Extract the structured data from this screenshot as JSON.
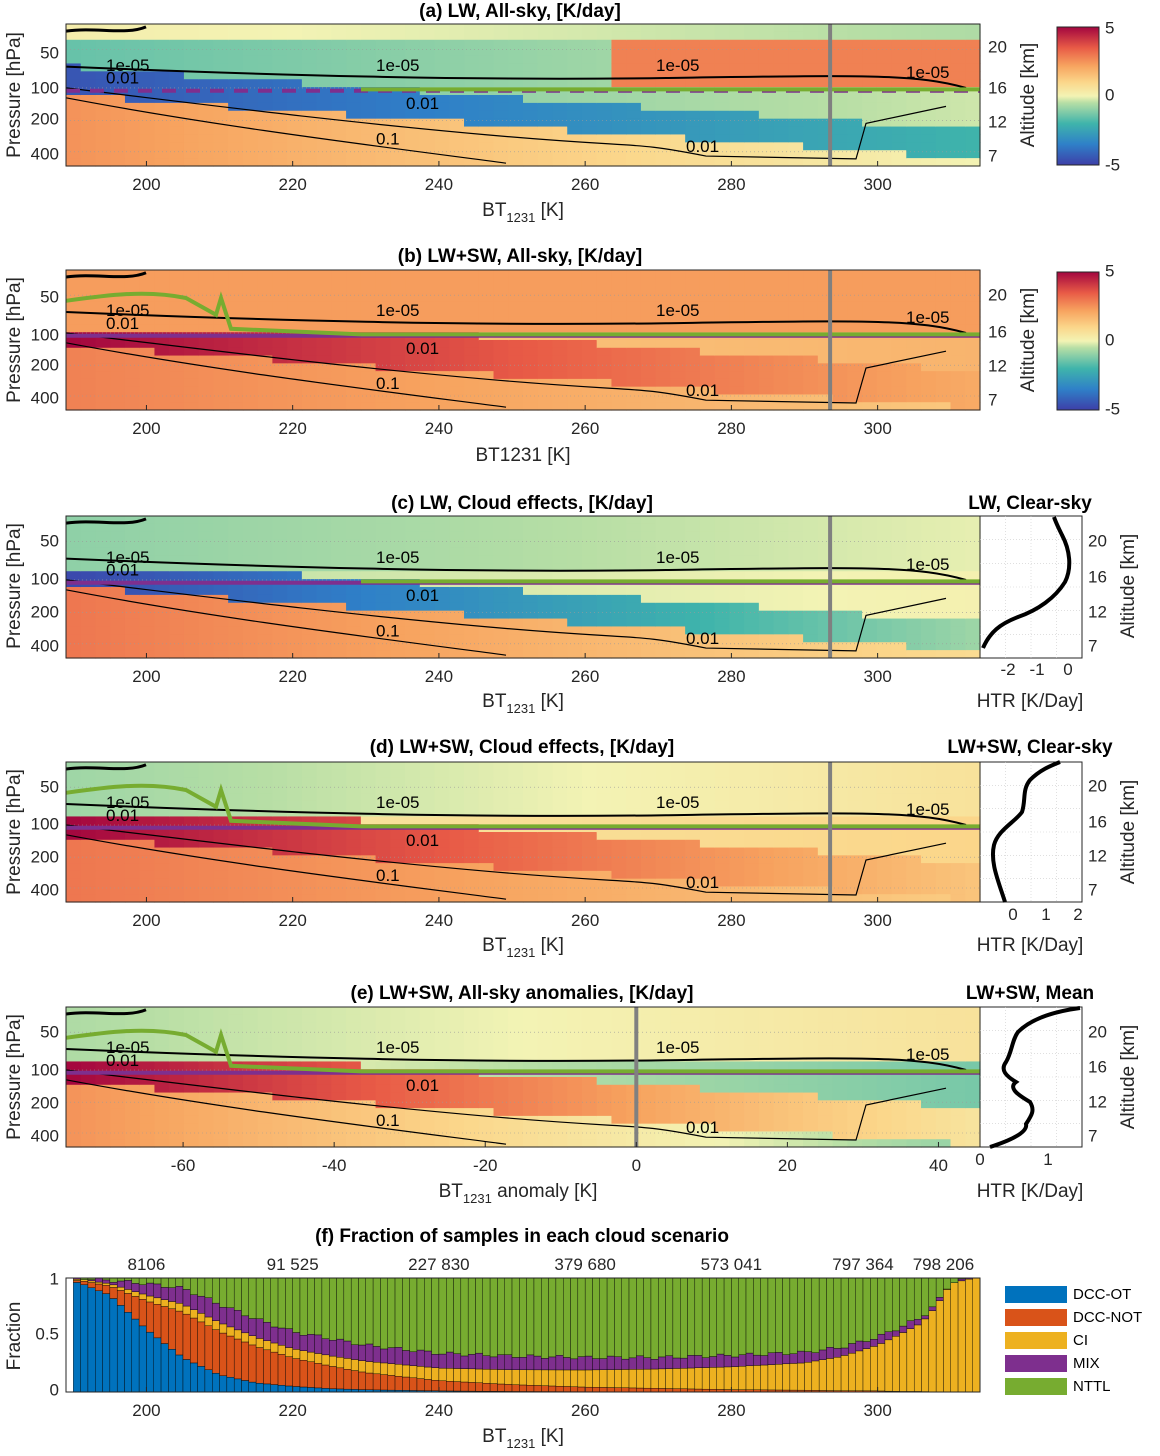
{
  "chart_data": [
    {
      "panel": "a",
      "type": "heatmap",
      "title": "(a) LW, All-sky, [K/day]",
      "xlabel": "BT",
      "xlabel_sub": "1231",
      "xlabel_tail": " [K]",
      "ylabel": "Pressure [hPa]",
      "y2label": "Altitude [km]",
      "xlim": [
        189,
        314
      ],
      "xticks": [
        "200",
        "220",
        "240",
        "260",
        "280",
        "300"
      ],
      "yticks": [
        "50",
        "100",
        "200",
        "400"
      ],
      "y2ticks": [
        "20",
        "16",
        "12",
        "7"
      ],
      "colorbar": {
        "ticks": [
          "5",
          "0",
          "-5"
        ],
        "range": [
          -5,
          5
        ]
      },
      "contour_labels": [
        "1e-05",
        "0.01",
        "0.1",
        "0.01",
        "1e-05",
        "1e-05",
        "0.01",
        "-05"
      ],
      "vertical_marker_x": 293.5
    },
    {
      "panel": "b",
      "type": "heatmap",
      "title": "(b) LW+SW, All-sky, [K/day]",
      "xlabel": "BT1231 [K]",
      "ylabel": "Pressure [hPa]",
      "y2label": "Altitude [km]",
      "xlim": [
        189,
        314
      ],
      "xticks": [
        "200",
        "220",
        "240",
        "260",
        "280",
        "300"
      ],
      "yticks": [
        "50",
        "100",
        "200",
        "400"
      ],
      "y2ticks": [
        "20",
        "16",
        "12",
        "7"
      ],
      "colorbar": {
        "ticks": [
          "5",
          "0",
          "-5"
        ],
        "range": [
          -5,
          5
        ]
      },
      "contour_labels": [
        "1e-05",
        "0.01",
        "0.1",
        "0.01",
        "1e-05",
        "1e-05",
        "0.01",
        "-05"
      ],
      "vertical_marker_x": 293.5
    },
    {
      "panel": "c",
      "type": "heatmap",
      "title": "(c) LW, Cloud effects, [K/day]",
      "xlabel": "BT",
      "xlabel_sub": "1231",
      "xlabel_tail": " [K]",
      "ylabel": "Pressure [hPa]",
      "xlim": [
        189,
        314
      ],
      "xticks": [
        "200",
        "220",
        "240",
        "260",
        "280",
        "300"
      ],
      "yticks": [
        "50",
        "100",
        "200",
        "400"
      ],
      "contour_labels": [
        "1e-05",
        "0.01",
        "0.1",
        "0.01",
        "1e-05",
        "1e-05",
        "0.01",
        "-05"
      ],
      "vertical_marker_x": 293.5,
      "side_profile": {
        "title": "LW, Clear-sky",
        "type": "line",
        "xlabel": "HTR [K/Day]",
        "y2label": "Altitude [km]",
        "xlim": [
          -2.5,
          0.5
        ],
        "xticks": [
          "-2",
          "-1",
          "0"
        ],
        "y2ticks": [
          "20",
          "16",
          "12",
          "7"
        ]
      }
    },
    {
      "panel": "d",
      "type": "heatmap",
      "title": "(d) LW+SW, Cloud effects, [K/day]",
      "xlabel": "BT",
      "xlabel_sub": "1231",
      "xlabel_tail": " [K]",
      "ylabel": "Pressure [hPa]",
      "xlim": [
        189,
        314
      ],
      "xticks": [
        "200",
        "220",
        "240",
        "260",
        "280",
        "300"
      ],
      "yticks": [
        "50",
        "100",
        "200",
        "400"
      ],
      "contour_labels": [
        "1e-05",
        "0.01",
        "0.1",
        "0.01",
        "1e-05",
        "1e-05",
        "0.01",
        "-05"
      ],
      "vertical_marker_x": 293.5,
      "side_profile": {
        "title": "LW+SW, Clear-sky",
        "type": "line",
        "xlabel": "HTR [K/Day]",
        "y2label": "Altitude [km]",
        "xlim": [
          -1,
          2
        ],
        "xticks": [
          "0",
          "1",
          "2"
        ],
        "y2ticks": [
          "20",
          "16",
          "12",
          "7"
        ]
      }
    },
    {
      "panel": "e",
      "type": "heatmap",
      "title": "(e) LW+SW, All-sky anomalies, [K/day]",
      "xlabel": "BT",
      "xlabel_sub": "1231",
      "xlabel_tail": " anomaly [K]",
      "ylabel": "Pressure [hPa]",
      "xlim": [
        -75.5,
        45.5
      ],
      "xticks": [
        "-60",
        "-40",
        "-20",
        "0",
        "20",
        "40"
      ],
      "yticks": [
        "50",
        "100",
        "200",
        "400"
      ],
      "contour_labels": [
        "1e-05",
        "0.01",
        "0.1",
        "0.01",
        "1e-05",
        "1e-05",
        "0.01",
        "-05"
      ],
      "vertical_marker_x": 0,
      "side_profile": {
        "title": "LW+SW, Mean",
        "type": "line",
        "xlabel": "HTR [K/Day]",
        "y2label": "Altitude [km]",
        "xlim": [
          0,
          1.5
        ],
        "xticks": [
          "0",
          "1"
        ],
        "y2ticks": [
          "20",
          "16",
          "12",
          "7"
        ]
      }
    },
    {
      "panel": "f",
      "type": "bar",
      "stacked": true,
      "title": "(f) Fraction of samples in each cloud scenario",
      "xlabel": "BT",
      "xlabel_sub": "1231",
      "xlabel_tail": " [K]",
      "ylabel": "Fraction",
      "xlim": [
        189,
        314
      ],
      "ylim": [
        0,
        1
      ],
      "xticks": [
        "200",
        "220",
        "240",
        "260",
        "280",
        "300"
      ],
      "yticks": [
        "0",
        "0.5",
        "1"
      ],
      "sample_counts": [
        {
          "x": 200,
          "label": "8106"
        },
        {
          "x": 220,
          "label": "91 525"
        },
        {
          "x": 240,
          "label": "227 830"
        },
        {
          "x": 260,
          "label": "379 680"
        },
        {
          "x": 280,
          "label": "573 041"
        },
        {
          "x": 298,
          "label": "797 364"
        },
        {
          "x": 309,
          "label": "798 206"
        }
      ],
      "bin_start": 190,
      "bin_width": 1,
      "series": [
        {
          "name": "DCC-OT",
          "color": "#0072BD"
        },
        {
          "name": "DCC-NOT",
          "color": "#D95319"
        },
        {
          "name": "CI",
          "color": "#EDB120"
        },
        {
          "name": "MIX",
          "color": "#7E2F8E"
        },
        {
          "name": "NTTL",
          "color": "#77AC30"
        }
      ],
      "knots": {
        "x": [
          190,
          195,
          200,
          205,
          210,
          215,
          220,
          225,
          230,
          240,
          250,
          260,
          270,
          280,
          290,
          295,
          300,
          303,
          306,
          308,
          310,
          313
        ],
        "DCC-OT": [
          0.98,
          0.85,
          0.55,
          0.3,
          0.15,
          0.08,
          0.05,
          0.03,
          0.02,
          0.01,
          0.005,
          0.003,
          0.002,
          0.001,
          0.001,
          0.001,
          0,
          0,
          0,
          0,
          0,
          0
        ],
        "DCC-NOT": [
          0.01,
          0.08,
          0.25,
          0.4,
          0.38,
          0.32,
          0.25,
          0.2,
          0.15,
          0.09,
          0.06,
          0.04,
          0.03,
          0.02,
          0.015,
          0.01,
          0.01,
          0.005,
          0.005,
          0,
          0,
          0
        ],
        "CI": [
          0.01,
          0.02,
          0.05,
          0.07,
          0.08,
          0.08,
          0.08,
          0.09,
          0.1,
          0.11,
          0.13,
          0.15,
          0.17,
          0.2,
          0.24,
          0.3,
          0.4,
          0.5,
          0.6,
          0.75,
          0.95,
          1.0
        ],
        "MIX": [
          0.0,
          0.03,
          0.1,
          0.14,
          0.16,
          0.16,
          0.15,
          0.15,
          0.14,
          0.13,
          0.12,
          0.11,
          0.1,
          0.1,
          0.09,
          0.08,
          0.07,
          0.06,
          0.05,
          0.02,
          0.01,
          0
        ]
      }
    }
  ],
  "colors": {
    "contour": "#000000",
    "tropopause_line": "#77AC30",
    "cold_point_line": "#7E2F8E",
    "marker": "#808080"
  }
}
